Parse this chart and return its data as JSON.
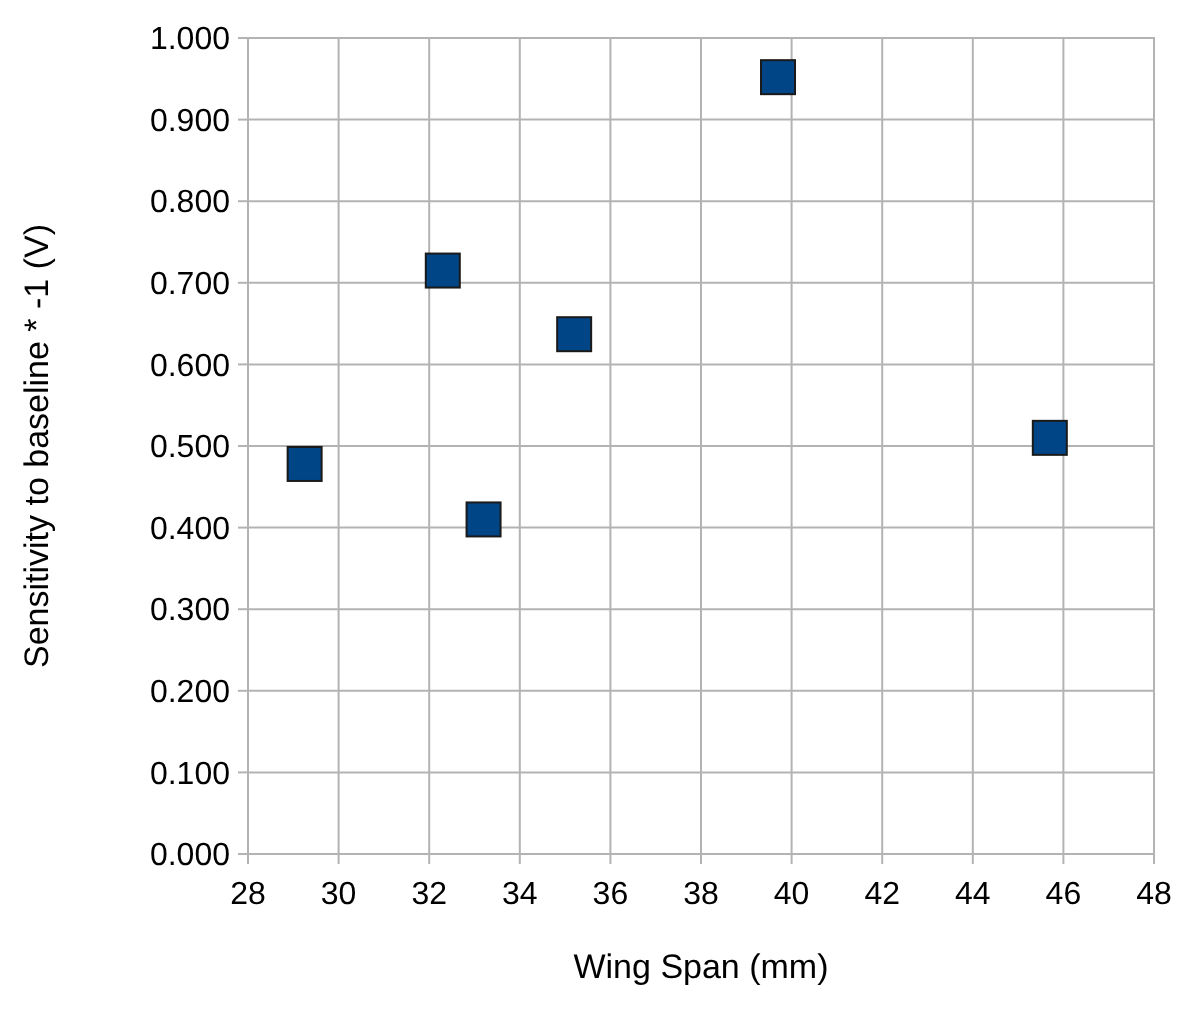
{
  "chart_data": {
    "type": "scatter",
    "xlabel": "Wing Span (mm)",
    "ylabel": "Sensitivity to baseline * -1 (V)",
    "x": [
      29.25,
      32.3,
      33.2,
      35.2,
      39.7,
      45.7
    ],
    "series": [
      {
        "color": "#004586",
        "values": [
          0.478,
          0.715,
          0.41,
          0.637,
          0.952,
          0.51
        ]
      }
    ],
    "xlim": [
      28,
      48
    ],
    "xticks": [
      28,
      30,
      32,
      34,
      36,
      38,
      40,
      42,
      44,
      46,
      48
    ],
    "ylim": [
      0,
      1
    ],
    "yticks": [
      {
        "value": 0,
        "label": "0.000"
      },
      {
        "value": 0.1,
        "label": "0.100"
      },
      {
        "value": 0.2,
        "label": "0.200"
      },
      {
        "value": 0.3,
        "label": "0.300"
      },
      {
        "value": 0.4,
        "label": "0.400"
      },
      {
        "value": 0.5,
        "label": "0.500"
      },
      {
        "value": 0.6,
        "label": "0.600"
      },
      {
        "value": 0.7,
        "label": "0.700"
      },
      {
        "value": 0.8,
        "label": "0.800"
      },
      {
        "value": 0.9,
        "label": "0.900"
      },
      {
        "value": 1,
        "label": "1.000"
      }
    ],
    "grid": true,
    "marker": "square"
  }
}
